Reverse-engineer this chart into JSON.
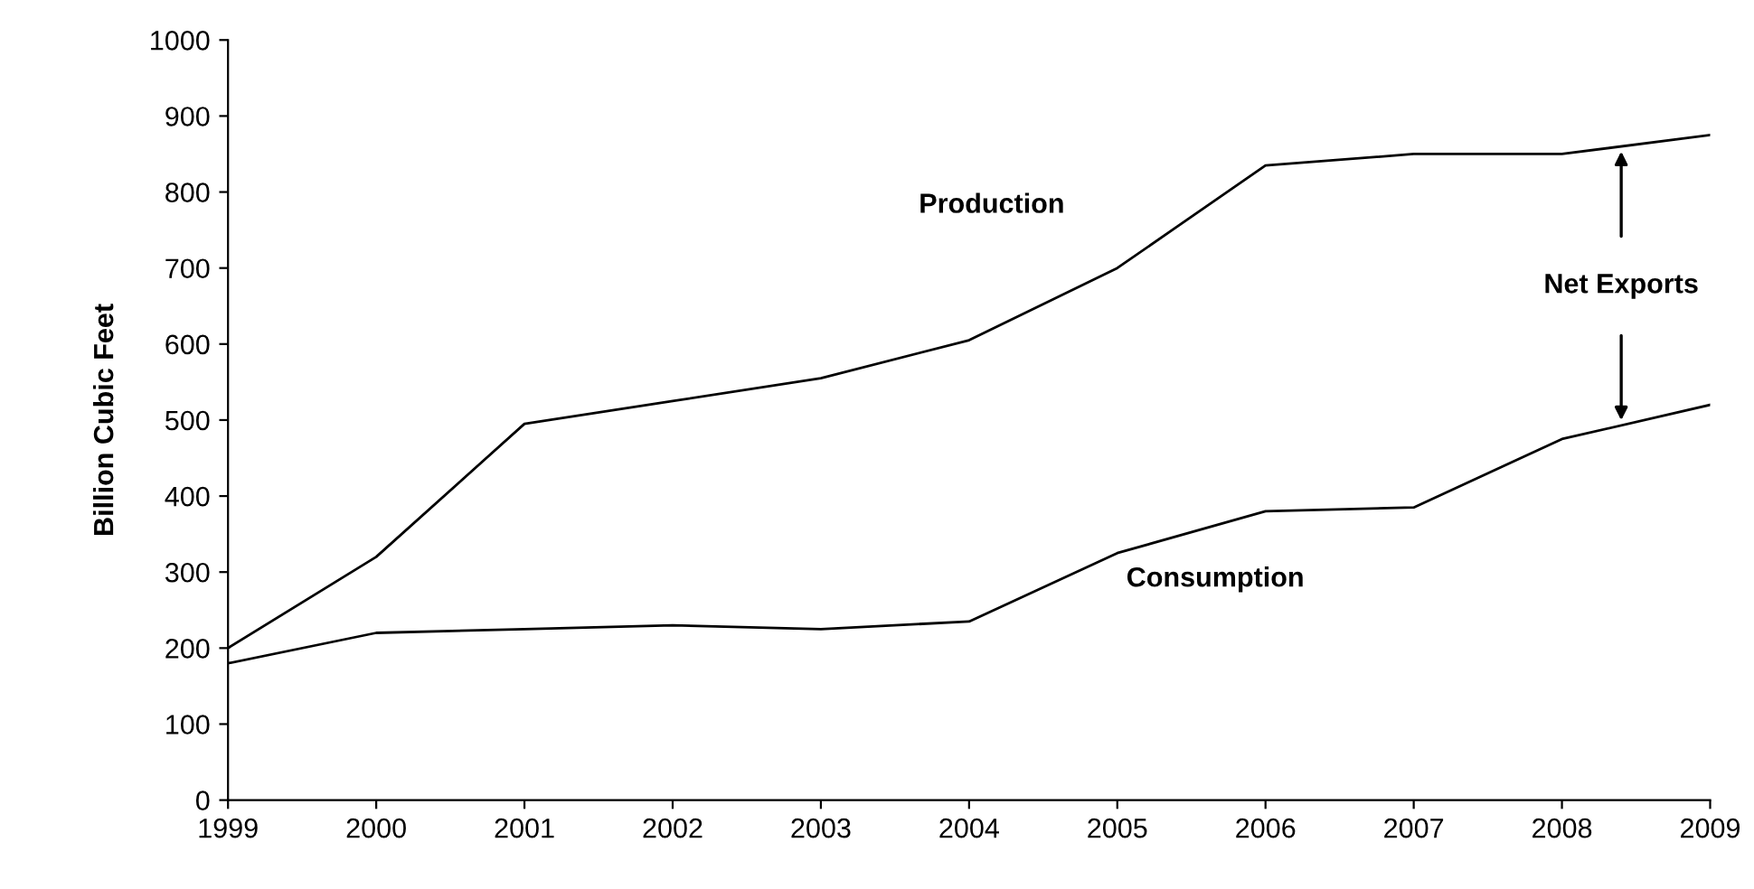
{
  "chart_data": {
    "type": "line",
    "ylabel": "Billion Cubic Feet",
    "x": [
      1999,
      2000,
      2001,
      2002,
      2003,
      2004,
      2005,
      2006,
      2007,
      2008,
      2009
    ],
    "series": [
      {
        "name": "Production",
        "color": "#000000",
        "values": [
          200,
          320,
          495,
          525,
          555,
          605,
          700,
          835,
          850,
          850,
          875
        ]
      },
      {
        "name": "Consumption",
        "color": "#000000",
        "values": [
          180,
          220,
          225,
          230,
          225,
          235,
          325,
          380,
          385,
          475,
          520
        ]
      }
    ],
    "xlim": [
      1999,
      2009
    ],
    "xticks": [
      1999,
      2000,
      2001,
      2002,
      2003,
      2004,
      2005,
      2006,
      2007,
      2008,
      2009
    ],
    "ylim": [
      0,
      1000
    ],
    "yticks": [
      0,
      100,
      200,
      300,
      400,
      500,
      600,
      700,
      800,
      900,
      1000
    ],
    "annotations": [
      "Net Exports"
    ],
    "grid": false,
    "legend": false,
    "marker": "none",
    "line_style": "solid"
  }
}
